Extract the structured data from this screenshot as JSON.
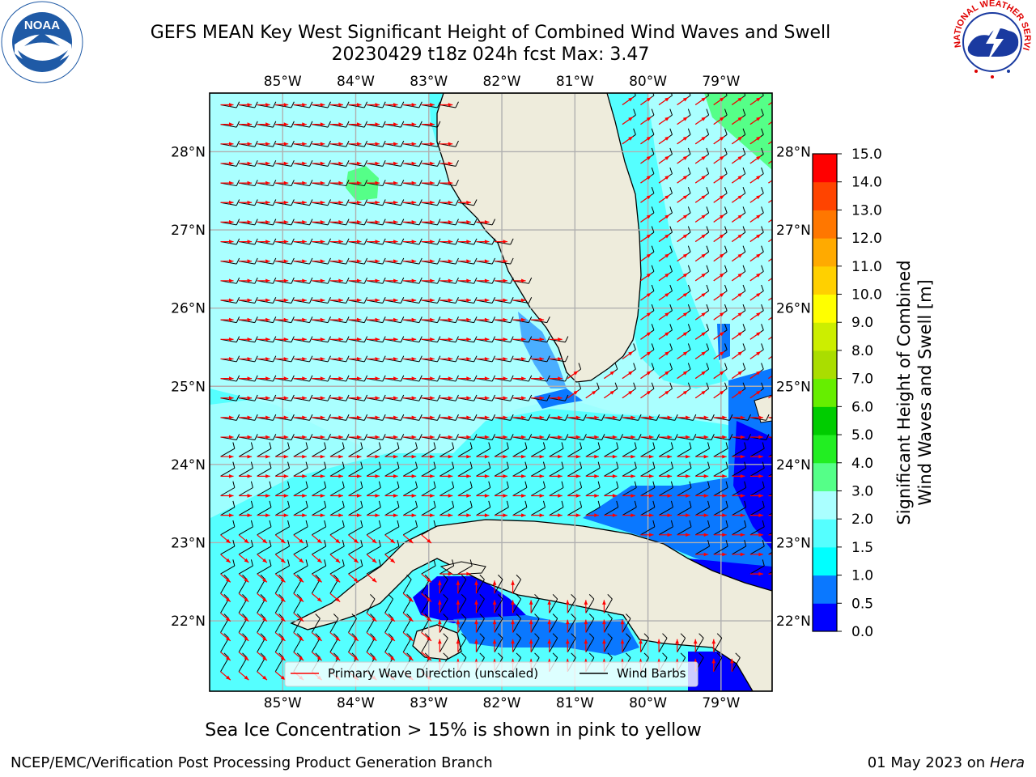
{
  "chart_data": {
    "type": "map",
    "title": "GEFS MEAN Key West Significant Height of Combined Wind Waves and Swell",
    "subtitle": "20230429 t18z 024h fcst   Max: 3.47",
    "x_ticks": [
      "85°W",
      "84°W",
      "83°W",
      "82°W",
      "81°W",
      "80°W",
      "79°W"
    ],
    "y_ticks": [
      "28°N",
      "27°N",
      "26°N",
      "25°N",
      "24°N",
      "23°N",
      "22°N"
    ],
    "lon_range": [
      -86.0,
      -78.3
    ],
    "lat_range": [
      21.1,
      28.75
    ],
    "colorbar": {
      "label_line1": "Significant Height of Combined",
      "label_line2": "Wind Waves and Swell [m]",
      "levels": [
        0.0,
        0.5,
        1.0,
        1.5,
        2.0,
        3.0,
        4.0,
        5.0,
        6.0,
        7.0,
        8.0,
        9.0,
        10.0,
        11.0,
        12.0,
        13.0,
        14.0,
        15.0
      ],
      "tick_labels": [
        "0.0",
        "0.5",
        "1.0",
        "1.5",
        "2.0",
        "3.0",
        "4.0",
        "5.0",
        "6.0",
        "7.0",
        "8.0",
        "9.0",
        "10.0",
        "11.0",
        "12.0",
        "13.0",
        "14.0",
        "15.0"
      ],
      "colors": [
        "#0000ff",
        "#0a78ff",
        "#00ffff",
        "#55ffff",
        "#aaffff",
        "#55ff88",
        "#22ee22",
        "#00cc00",
        "#66ee00",
        "#aadd00",
        "#ccee00",
        "#ffff00",
        "#ffd000",
        "#ffaa00",
        "#ff7700",
        "#ff4400",
        "#ff0000"
      ]
    },
    "legend": {
      "placement": "lower-center",
      "entries": [
        {
          "label": "Primary Wave Direction (unscaled)",
          "color": "#ff0000"
        },
        {
          "label": "Wind Barbs",
          "color": "#000000"
        }
      ]
    },
    "grid": true,
    "max_value": 3.47,
    "bottom_note": "Sea Ice Concentration > 15% is shown in pink to yellow"
  },
  "footer": {
    "left": "NCEP/EMC/Verification Post Processing Product Generation Branch",
    "right_date": "01 May 2023 on",
    "right_host": "Hera"
  },
  "logos": {
    "left": {
      "icon": "noaa-logo",
      "text": "NOAA"
    },
    "right": {
      "icon": "nws-logo",
      "text": "NATIONAL WEATHER SERVICE"
    }
  },
  "colors": {
    "land": "#eeecdc",
    "grid": "#b0b0b0",
    "wind_barb": "#000000",
    "wave_arrow": "#ff0000"
  }
}
